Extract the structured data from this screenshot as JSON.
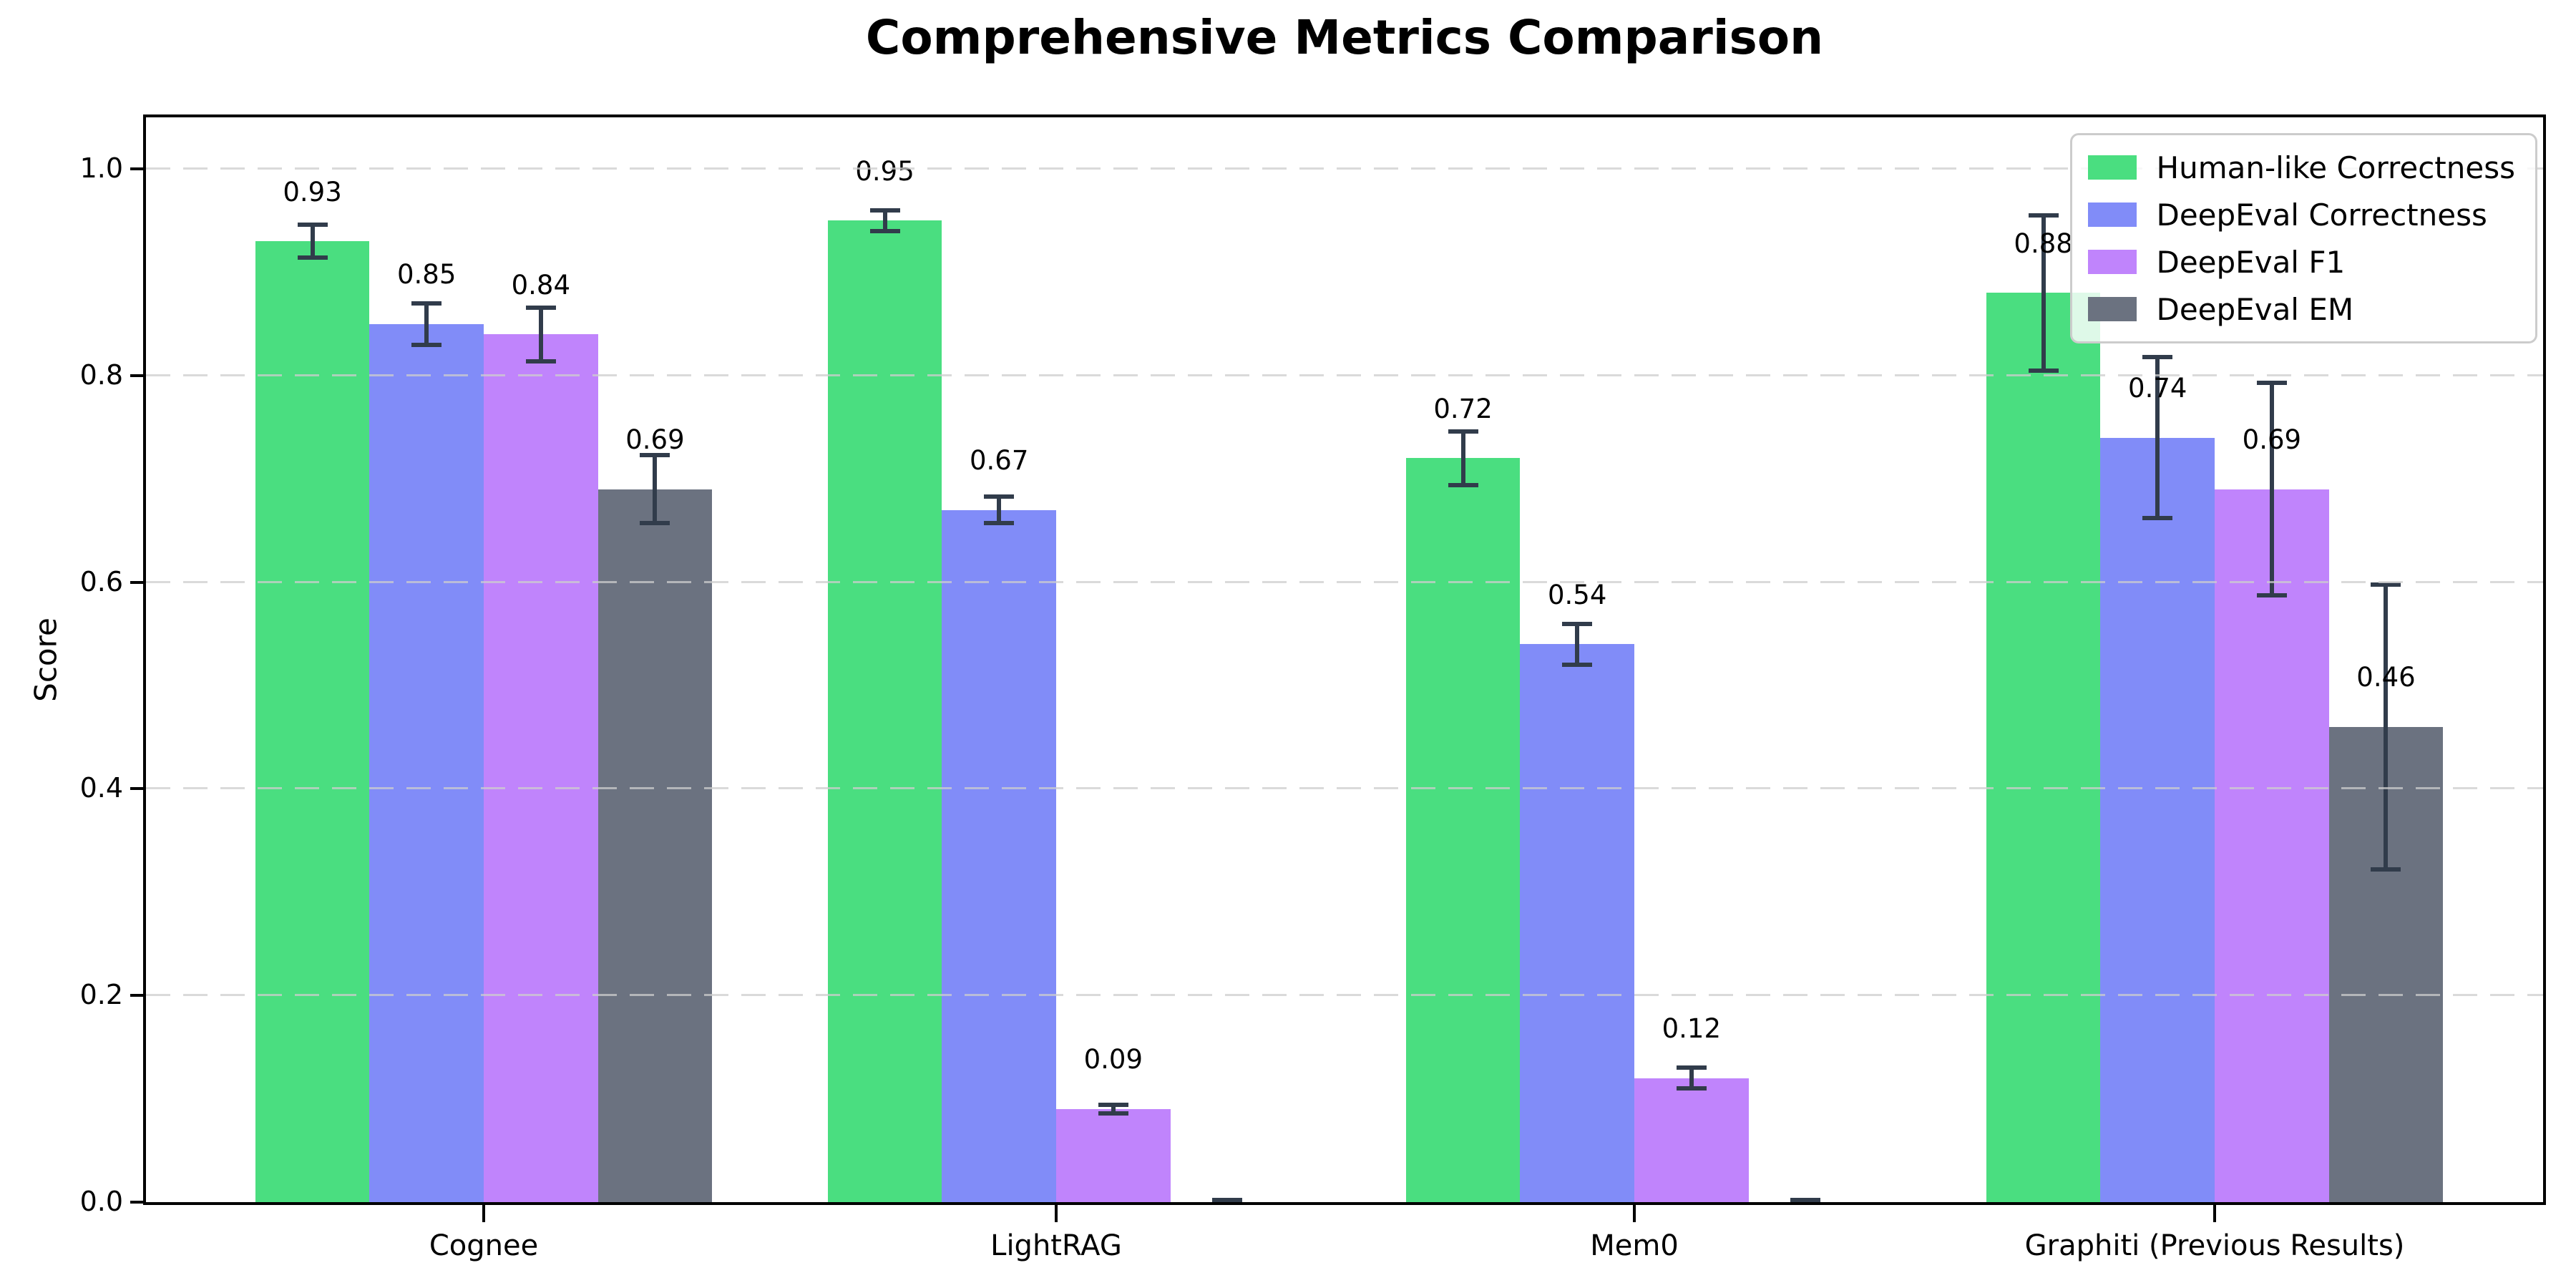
{
  "chart_data": {
    "type": "bar",
    "title": "Comprehensive Metrics Comparison",
    "xlabel": "",
    "ylabel": "Score",
    "ylim": [
      0,
      1.05
    ],
    "yticks": [
      0.0,
      0.2,
      0.4,
      0.6,
      0.8,
      1.0
    ],
    "ytick_labels": [
      "0.0",
      "0.2",
      "0.4",
      "0.6",
      "0.8",
      "1.0"
    ],
    "grid": "horizontal-dashed-over-bars",
    "legend_position": "upper-right",
    "background_color": "#ffffff",
    "error_bar_color": "#313c4b",
    "categories": [
      "Cognee",
      "LightRAG",
      "Mem0",
      "Graphiti (Previous Results)"
    ],
    "series": [
      {
        "name": "Human-like Correctness",
        "color": "#4ade80",
        "values": [
          0.93,
          0.95,
          0.72,
          0.88
        ],
        "errors": [
          0.018,
          0.012,
          0.028,
          0.077
        ],
        "labels": [
          "0.93",
          "0.95",
          "0.72",
          "0.88"
        ]
      },
      {
        "name": "DeepEval Correctness",
        "color": "#818cf8",
        "values": [
          0.85,
          0.67,
          0.54,
          0.74
        ],
        "errors": [
          0.022,
          0.015,
          0.022,
          0.08
        ],
        "labels": [
          "0.85",
          "0.67",
          "0.54",
          "0.74"
        ]
      },
      {
        "name": "DeepEval F1",
        "color": "#c084fc",
        "values": [
          0.84,
          0.09,
          0.12,
          0.69
        ],
        "errors": [
          0.028,
          0.006,
          0.012,
          0.105
        ],
        "labels": [
          "0.84",
          "0.09",
          "0.12",
          "0.69"
        ]
      },
      {
        "name": "DeepEval EM",
        "color": "#6b7280",
        "values": [
          0.69,
          0.0,
          0.0,
          0.46
        ],
        "errors": [
          0.035,
          0.004,
          0.004,
          0.14
        ],
        "labels": [
          "0.69",
          "",
          "",
          "0.46"
        ]
      }
    ]
  }
}
